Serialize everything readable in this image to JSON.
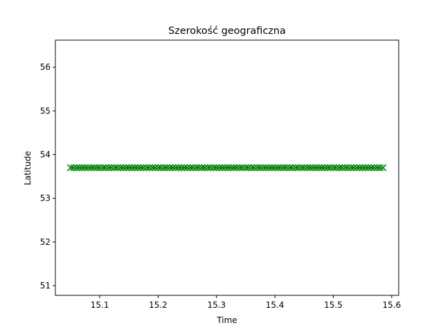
{
  "chart_data": {
    "type": "line",
    "title": "Szerokość geograficzna",
    "xlabel": "Time",
    "ylabel": "Latitude",
    "xlim": [
      15.024,
      15.612
    ],
    "ylim": [
      50.78,
      56.62
    ],
    "x_ticks": [
      15.1,
      15.2,
      15.3,
      15.4,
      15.5,
      15.6
    ],
    "x_tick_labels": [
      "15.1",
      "15.2",
      "15.3",
      "15.4",
      "15.5",
      "15.6"
    ],
    "y_ticks": [
      51,
      52,
      53,
      54,
      55,
      56
    ],
    "y_tick_labels": [
      "51",
      "52",
      "53",
      "54",
      "55",
      "56"
    ],
    "grid": false,
    "series": [
      {
        "color": "#008000",
        "marker": "x",
        "line_style": "dashed",
        "x_start": 15.05,
        "x_end": 15.585,
        "point_step": 0.005,
        "y_constant": 53.7
      }
    ]
  }
}
